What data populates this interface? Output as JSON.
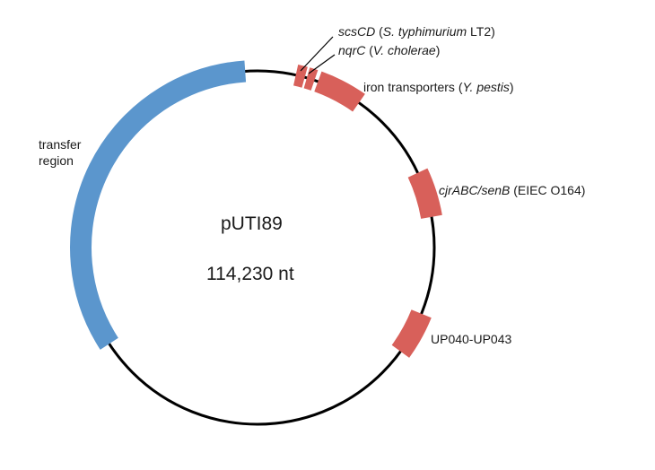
{
  "plasmid": {
    "name": "pUTI89",
    "size": "114,230 nt"
  },
  "colors": {
    "backbone": "#000000",
    "transfer": "#5b96cd",
    "feature": "#d8605a"
  },
  "regions": {
    "transfer": {
      "label_line1": "transfer",
      "label_line2": "region"
    },
    "scs": {
      "gene": "scsCD",
      "source": "S. typhimurium",
      "strain": "LT2"
    },
    "nqr": {
      "gene": "nqrC",
      "source": "V. cholerae"
    },
    "iron": {
      "text": "iron transporters",
      "source": "Y. pestis"
    },
    "cjr": {
      "gene": "cjrABC/senB",
      "source": "EIEC O164"
    },
    "up": {
      "text": "UP040-UP043"
    }
  }
}
